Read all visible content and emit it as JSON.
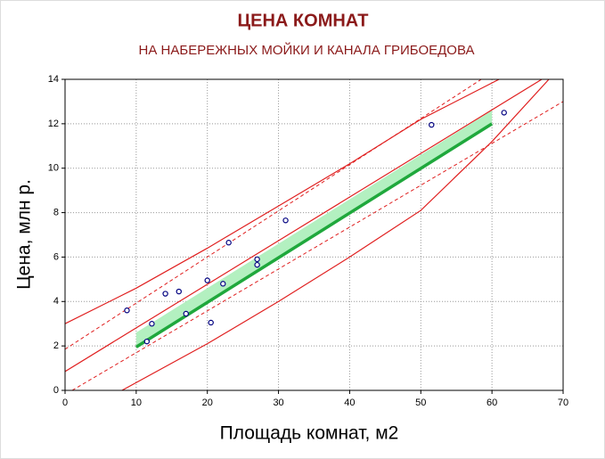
{
  "chart_data": {
    "type": "scatter",
    "title": "ЦЕНА КОМНАТ",
    "subtitle": "НА НАБЕРЕЖНЫХ МОЙКИ И КАНАЛА ГРИБОЕДОВА",
    "x_label": "Площадь комнат, м2",
    "y_label": "Цена, млн р.",
    "xlim": [
      0,
      70
    ],
    "xticks": [
      0,
      10,
      20,
      30,
      40,
      50,
      60,
      70
    ],
    "ylim": [
      0,
      14
    ],
    "yticks": [
      0,
      2,
      4,
      6,
      8,
      10,
      12,
      14
    ],
    "grid": true,
    "points": {
      "color": "#000080",
      "x": [
        8.7,
        11.5,
        12.2,
        14.1,
        16,
        17,
        20,
        20.5,
        22.2,
        23,
        27,
        27,
        31,
        51.5,
        61.7
      ],
      "y": [
        3.6,
        2.2,
        3.0,
        4.35,
        4.45,
        3.45,
        4.95,
        3.05,
        4.8,
        6.65,
        5.9,
        5.65,
        7.65,
        11.95,
        12.5
      ]
    },
    "band": {
      "color": "#b3f0c0",
      "x": [
        10,
        60
      ],
      "lower": [
        1.95,
        12.0
      ],
      "upper": [
        2.6,
        12.6
      ]
    },
    "series": [
      {
        "color": "#1fa83c",
        "width": 3.5,
        "dashed": false,
        "x": [
          10,
          60
        ],
        "y": [
          1.95,
          12.0
        ]
      },
      {
        "color": "#e02020",
        "width": 1.2,
        "dashed": false,
        "x": [
          0,
          67
        ],
        "y": [
          0.85,
          14
        ]
      },
      {
        "color": "#e02020",
        "width": 1.2,
        "dashed": false,
        "x": [
          0,
          10,
          20,
          30,
          40,
          50,
          61
        ],
        "y": [
          3.0,
          4.6,
          6.4,
          8.3,
          10.2,
          12.2,
          14
        ]
      },
      {
        "color": "#e02020",
        "width": 1.2,
        "dashed": false,
        "x": [
          8,
          20,
          30,
          40,
          50,
          60,
          68
        ],
        "y": [
          0,
          2.1,
          4.0,
          6.0,
          8.1,
          11.2,
          14
        ]
      },
      {
        "color": "#e02020",
        "width": 1,
        "dashed": true,
        "x": [
          0,
          58.5
        ],
        "y": [
          1.85,
          14
        ]
      },
      {
        "color": "#e02020",
        "width": 1,
        "dashed": true,
        "x": [
          1,
          70
        ],
        "y": [
          0,
          13.0
        ]
      }
    ]
  }
}
